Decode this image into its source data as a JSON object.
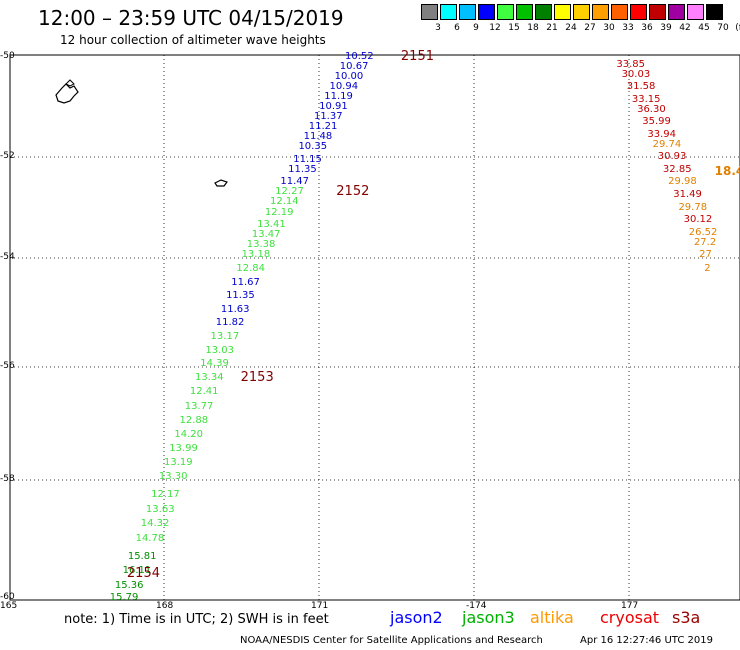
{
  "header": {
    "title": "12:00 – 23:59 UTC 04/15/2019",
    "subtitle": "12 hour collection of altimeter wave heights"
  },
  "color_scale": {
    "labels": [
      "3",
      "6",
      "9",
      "12",
      "15",
      "18",
      "21",
      "24",
      "27",
      "30",
      "33",
      "36",
      "39",
      "42",
      "45",
      "70",
      "(ft)"
    ],
    "colors": [
      "#808080",
      "#00ffff",
      "#00bfff",
      "#0000ff",
      "#40ff40",
      "#00c000",
      "#008000",
      "#ffff00",
      "#ffd000",
      "#ffa000",
      "#ff6000",
      "#ff0000",
      "#c00000",
      "#a000a0",
      "#ff80ff",
      "#000000"
    ]
  },
  "axes": {
    "lat_labels": [
      "-50",
      "-52",
      "-54",
      "-56",
      "-58",
      "-60"
    ],
    "lon_labels": [
      "165",
      "168",
      "171",
      "-174",
      "177"
    ]
  },
  "passes": [
    {
      "label": "2151",
      "lon": 172.6,
      "lat": -50.0
    },
    {
      "label": "2152",
      "lon": 171.35,
      "lat": -52.7
    },
    {
      "label": "2153",
      "lon": 169.5,
      "lat": -56.2
    },
    {
      "label": "2154",
      "lon": 167.3,
      "lat": -59.6
    }
  ],
  "tracks": [
    {
      "name": "jason2-a",
      "color": "#0000cc",
      "points": [
        {
          "v": "10.52",
          "lon": 171.75,
          "lat": -50.0
        },
        {
          "v": "10.67",
          "lon": 171.65,
          "lat": -50.2
        },
        {
          "v": "10.00",
          "lon": 171.55,
          "lat": -50.4
        },
        {
          "v": "10.94",
          "lon": 171.45,
          "lat": -50.6
        },
        {
          "v": "11.19",
          "lon": 171.35,
          "lat": -50.8
        },
        {
          "v": "10.91",
          "lon": 171.25,
          "lat": -51.0
        },
        {
          "v": "11.37",
          "lon": 171.15,
          "lat": -51.2
        },
        {
          "v": "11.21",
          "lon": 171.05,
          "lat": -51.4
        },
        {
          "v": "11.48",
          "lon": 170.95,
          "lat": -51.6
        },
        {
          "v": "10.35",
          "lon": 170.85,
          "lat": -51.8
        },
        {
          "v": "11.15",
          "lon": 170.75,
          "lat": -52.05
        },
        {
          "v": "11.35",
          "lon": 170.65,
          "lat": -52.25
        },
        {
          "v": "11.47",
          "lon": 170.5,
          "lat": -52.5
        }
      ]
    },
    {
      "name": "jason3-a",
      "color": "#40e040",
      "points": [
        {
          "v": "12.27",
          "lon": 170.4,
          "lat": -52.7
        },
        {
          "v": "12.14",
          "lon": 170.3,
          "lat": -52.9
        },
        {
          "v": "12.19",
          "lon": 170.2,
          "lat": -53.1
        },
        {
          "v": "13.41",
          "lon": 170.05,
          "lat": -53.35
        },
        {
          "v": "13.47",
          "lon": 169.95,
          "lat": -53.55
        },
        {
          "v": "13.38",
          "lon": 169.85,
          "lat": -53.75
        },
        {
          "v": "13.18",
          "lon": 169.75,
          "lat": -53.95
        },
        {
          "v": "12.84",
          "lon": 169.65,
          "lat": -54.2
        }
      ]
    },
    {
      "name": "jason2-b",
      "color": "#0000cc",
      "points": [
        {
          "v": "11.67",
          "lon": 169.55,
          "lat": -54.45
        },
        {
          "v": "11.35",
          "lon": 169.45,
          "lat": -54.7
        },
        {
          "v": "11.63",
          "lon": 169.35,
          "lat": -54.95
        },
        {
          "v": "11.82",
          "lon": 169.25,
          "lat": -55.2
        }
      ]
    },
    {
      "name": "jason3-b",
      "color": "#40e040",
      "points": [
        {
          "v": "13.17",
          "lon": 169.15,
          "lat": -55.45
        },
        {
          "v": "13.03",
          "lon": 169.05,
          "lat": -55.7
        },
        {
          "v": "14.39",
          "lon": 168.95,
          "lat": -55.95
        },
        {
          "v": "13.34",
          "lon": 168.85,
          "lat": -56.2
        },
        {
          "v": "12.41",
          "lon": 168.75,
          "lat": -56.45
        },
        {
          "v": "13.77",
          "lon": 168.65,
          "lat": -56.7
        },
        {
          "v": "12.88",
          "lon": 168.55,
          "lat": -56.95
        },
        {
          "v": "14.20",
          "lon": 168.45,
          "lat": -57.2
        },
        {
          "v": "13.99",
          "lon": 168.35,
          "lat": -57.45
        },
        {
          "v": "13.19",
          "lon": 168.25,
          "lat": -57.7
        },
        {
          "v": "13.30",
          "lon": 168.15,
          "lat": -57.95
        },
        {
          "v": "12.17",
          "lon": 168.0,
          "lat": -58.25
        },
        {
          "v": "13.63",
          "lon": 167.9,
          "lat": -58.5
        },
        {
          "v": "14.32",
          "lon": 167.8,
          "lat": -58.75
        },
        {
          "v": "14.78",
          "lon": 167.7,
          "lat": -59.0
        }
      ]
    },
    {
      "name": "jason3-c",
      "color": "#009000",
      "points": [
        {
          "v": "15.81",
          "lon": 167.55,
          "lat": -59.3
        },
        {
          "v": "16.11",
          "lon": 167.45,
          "lat": -59.55
        },
        {
          "v": "15.36",
          "lon": 167.3,
          "lat": -59.8
        },
        {
          "v": "15.79",
          "lon": 167.2,
          "lat": -60.05
        }
      ]
    },
    {
      "name": "cryosat-a",
      "color": "#c00000",
      "points": [
        {
          "v": "33.85",
          "lon": 177.0,
          "lat": -50.15
        },
        {
          "v": "30.03",
          "lon": 177.1,
          "lat": -50.35
        },
        {
          "v": "31.58",
          "lon": 177.2,
          "lat": -50.6
        },
        {
          "v": "33.15",
          "lon": 177.3,
          "lat": -50.85
        },
        {
          "v": "36.30",
          "lon": 177.4,
          "lat": -51.05
        },
        {
          "v": "35.99",
          "lon": 177.5,
          "lat": -51.3
        },
        {
          "v": "33.94",
          "lon": 177.6,
          "lat": -51.55
        }
      ]
    },
    {
      "name": "cryosat-b",
      "color": "#e08000",
      "points": [
        {
          "v": "29.74",
          "lon": 177.7,
          "lat": -51.75
        }
      ]
    },
    {
      "name": "cryosat-c",
      "color": "#c00000",
      "points": [
        {
          "v": "30.93",
          "lon": 177.8,
          "lat": -52.0
        },
        {
          "v": "32.85",
          "lon": 177.9,
          "lat": -52.25
        }
      ]
    },
    {
      "name": "cryosat-d",
      "color": "#e08000",
      "points": [
        {
          "v": "18.4",
          "lon": 178.9,
          "lat": -52.25
        },
        {
          "v": "29.98",
          "lon": 178.0,
          "lat": -52.5
        }
      ]
    },
    {
      "name": "cryosat-e",
      "color": "#c00000",
      "points": [
        {
          "v": "31.49",
          "lon": 178.1,
          "lat": -52.75
        }
      ]
    },
    {
      "name": "cryosat-f",
      "color": "#e08000",
      "points": [
        {
          "v": "29.78",
          "lon": 178.2,
          "lat": -53.0
        }
      ]
    },
    {
      "name": "cryosat-g",
      "color": "#c00000",
      "points": [
        {
          "v": "30.12",
          "lon": 178.3,
          "lat": -53.25
        }
      ]
    },
    {
      "name": "cryosat-h",
      "color": "#e08000",
      "points": [
        {
          "v": "26.52",
          "lon": 178.4,
          "lat": -53.5
        },
        {
          "v": "27.2",
          "lon": 178.5,
          "lat": -53.7
        },
        {
          "v": "27",
          "lon": 178.6,
          "lat": -53.95
        },
        {
          "v": "2",
          "lon": 178.7,
          "lat": -54.2
        }
      ]
    }
  ],
  "footer": {
    "note": "note:  1) Time is in UTC;  2) SWH is in feet",
    "legend": [
      {
        "label": "jason2",
        "color": "#0000ff"
      },
      {
        "label": "jason3",
        "color": "#00b000"
      },
      {
        "label": "altika",
        "color": "#ff9900"
      },
      {
        "label": "cryosat",
        "color": "#ee0000"
      },
      {
        "label": "s3a",
        "color": "#990000"
      }
    ],
    "credit": "NOAA/NESDIS Center for Satellite Applications and Research",
    "timestamp": "Apr 16 12:27:46 UTC 2019"
  }
}
